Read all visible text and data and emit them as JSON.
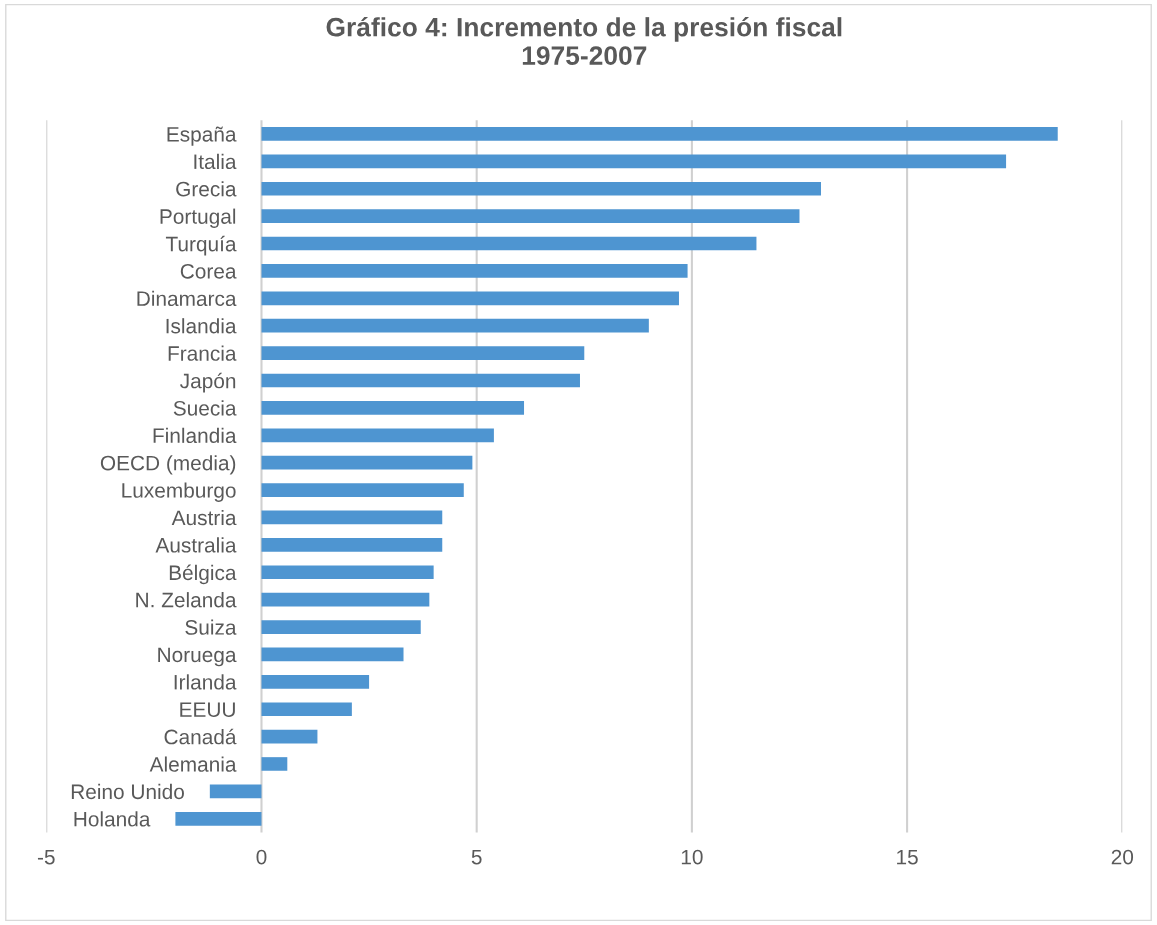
{
  "chart_data": {
    "type": "bar",
    "orientation": "horizontal",
    "title": "Gráfico 4: Incremento de la presión fiscal\n1975-2007",
    "categories": [
      "España",
      "Italia",
      "Grecia",
      "Portugal",
      "Turquía",
      "Corea",
      "Dinamarca",
      "Islandia",
      "Francia",
      "Japón",
      "Suecia",
      "Finlandia",
      "OECD (media)",
      "Luxemburgo",
      "Austria",
      "Australia",
      "Bélgica",
      "N. Zelanda",
      "Suiza",
      "Noruega",
      "Irlanda",
      "EEUU",
      "Canadá",
      "Alemania",
      "Reino Unido",
      "Holanda"
    ],
    "values": [
      18.5,
      17.3,
      13.0,
      12.5,
      11.5,
      9.9,
      9.7,
      9.0,
      7.5,
      7.4,
      6.1,
      5.4,
      4.9,
      4.7,
      4.2,
      4.2,
      4.0,
      3.9,
      3.7,
      3.3,
      2.5,
      2.1,
      1.3,
      0.6,
      -1.2,
      -2.0
    ],
    "color": "#4e95d1",
    "xlim": [
      -5,
      20
    ],
    "xticks": [
      -5,
      0,
      5,
      10,
      15,
      20
    ],
    "grid": "x"
  }
}
